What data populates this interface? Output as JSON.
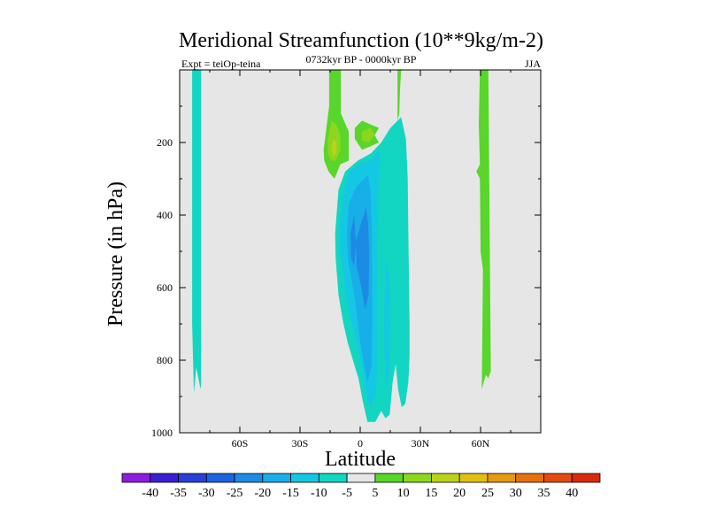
{
  "chart_data": {
    "type": "contour",
    "title": "Meridional Streamfunction (10**9kg/m-2)",
    "subtitle": "0732kyr BP - 0000kyr BP",
    "left_label": "Expt = teiOp-teina",
    "right_label": "JJA",
    "xlabel": "Latitude",
    "ylabel": "Pressure (in hPa)",
    "xlim": [
      -90,
      90
    ],
    "ylim": [
      1000,
      0
    ],
    "x_ticks": [
      {
        "value": -60,
        "label": "60S"
      },
      {
        "value": -30,
        "label": "30S"
      },
      {
        "value": 0,
        "label": "0"
      },
      {
        "value": 30,
        "label": "30N"
      },
      {
        "value": 60,
        "label": "60N"
      }
    ],
    "y_ticks": [
      {
        "value": 200,
        "label": "200"
      },
      {
        "value": 400,
        "label": "400"
      },
      {
        "value": 600,
        "label": "600"
      },
      {
        "value": 800,
        "label": "800"
      },
      {
        "value": 1000,
        "label": "1000"
      }
    ],
    "colorbar": {
      "levels": [
        -40,
        -35,
        -30,
        -25,
        -20,
        -15,
        -10,
        -5,
        5,
        10,
        15,
        20,
        25,
        30,
        35,
        40
      ],
      "colors": [
        "#8a1ee0",
        "#3b1fd4",
        "#2a3fd8",
        "#1f62df",
        "#1d8ae3",
        "#18aee8",
        "#14c8e4",
        "#12d6c2",
        "#e6e6e6",
        "#58d62a",
        "#8ed61e",
        "#bcd21a",
        "#e0c014",
        "#e49a12",
        "#e47212",
        "#e44a10",
        "#d82a0c"
      ]
    },
    "regions": [
      {
        "name": "southern-polar-cell",
        "value_range": [
          -10,
          -5
        ],
        "color": "#12d6c2",
        "polygon": [
          [
            -83.8,
            0
          ],
          [
            -79.3,
            0
          ],
          [
            -79.3,
            860
          ],
          [
            -79.6,
            880
          ],
          [
            -81.7,
            820
          ],
          [
            -82.9,
            890
          ],
          [
            -83.8,
            700
          ]
        ]
      },
      {
        "name": "northern-polar-cell",
        "value_range": [
          5,
          10
        ],
        "color": "#58d62a",
        "polygon": [
          [
            63.9,
            0
          ],
          [
            59.7,
            0
          ],
          [
            59.1,
            150
          ],
          [
            59.7,
            260
          ],
          [
            57.9,
            280
          ],
          [
            59.7,
            300
          ],
          [
            60.0,
            500
          ],
          [
            61.2,
            550
          ],
          [
            60.6,
            880
          ],
          [
            62.7,
            840
          ],
          [
            63.9,
            850
          ],
          [
            65.1,
            830
          ]
        ]
      },
      {
        "name": "upper-left-positive-cell",
        "value_range": [
          5,
          10
        ],
        "color": "#58d62a",
        "polygon": [
          [
            -15.5,
            0
          ],
          [
            -9.6,
            0
          ],
          [
            -9.6,
            120
          ],
          [
            -5.7,
            170
          ],
          [
            -5.7,
            250
          ],
          [
            -9.9,
            260
          ],
          [
            -12.8,
            300
          ],
          [
            -15.8,
            280
          ],
          [
            -17.9,
            250
          ],
          [
            -18.2,
            220
          ],
          [
            -17.3,
            180
          ],
          [
            -15.5,
            100
          ]
        ]
      },
      {
        "name": "upper-left-positive-core",
        "value_range": [
          10,
          15
        ],
        "color": "#8ed61e",
        "polygon": [
          [
            -14.3,
            140
          ],
          [
            -11.9,
            150
          ],
          [
            -9.9,
            180
          ],
          [
            -9.9,
            220
          ],
          [
            -12.2,
            250
          ],
          [
            -14.6,
            250
          ],
          [
            -16.1,
            230
          ],
          [
            -16.1,
            190
          ]
        ]
      },
      {
        "name": "upper-left-positive-peak",
        "value_range": [
          15,
          20
        ],
        "color": "#bcd21a",
        "polygon": [
          [
            -13.4,
            190
          ],
          [
            -11.9,
            200
          ],
          [
            -11.9,
            230
          ],
          [
            -13.4,
            240
          ],
          [
            -14.3,
            215
          ]
        ]
      },
      {
        "name": "upper-center-positive-cell",
        "value_range": [
          5,
          10
        ],
        "color": "#58d62a",
        "polygon": [
          [
            -2.7,
            160
          ],
          [
            0.9,
            140
          ],
          [
            5.1,
            150
          ],
          [
            9.3,
            160
          ],
          [
            7.2,
            180
          ],
          [
            9.3,
            200
          ],
          [
            5.4,
            210
          ],
          [
            0.9,
            220
          ],
          [
            -2.7,
            190
          ]
        ]
      },
      {
        "name": "upper-center-positive-core",
        "value_range": [
          10,
          15
        ],
        "color": "#8ed61e",
        "polygon": [
          [
            0.9,
            170
          ],
          [
            5.1,
            160
          ],
          [
            7.2,
            180
          ],
          [
            4.2,
            200
          ],
          [
            0.9,
            195
          ]
        ]
      },
      {
        "name": "upper-right-positive-strip",
        "value_range": [
          5,
          10
        ],
        "color": "#58d62a",
        "polygon": [
          [
            18.6,
            0
          ],
          [
            20.4,
            0
          ],
          [
            19.8,
            60
          ],
          [
            19.5,
            120
          ],
          [
            18.6,
            140
          ]
        ]
      },
      {
        "name": "tropical-negative-cell",
        "value_range": [
          -10,
          -5
        ],
        "color": "#12d6c2",
        "polygon": [
          [
            18.6,
            140
          ],
          [
            20.4,
            130
          ],
          [
            22.8,
            190
          ],
          [
            23.7,
            300
          ],
          [
            24.0,
            450
          ],
          [
            24.3,
            580
          ],
          [
            24.6,
            700
          ],
          [
            24.6,
            790
          ],
          [
            24.0,
            860
          ],
          [
            22.5,
            920
          ],
          [
            20.7,
            930
          ],
          [
            18.9,
            880
          ],
          [
            17.7,
            810
          ],
          [
            16.2,
            860
          ],
          [
            14.7,
            950
          ],
          [
            12.6,
            960
          ],
          [
            10.5,
            940
          ],
          [
            7.5,
            970
          ],
          [
            3.6,
            970
          ],
          [
            1.2,
            910
          ],
          [
            -0.9,
            850
          ],
          [
            -3.6,
            800
          ],
          [
            -6.3,
            750
          ],
          [
            -8.7,
            690
          ],
          [
            -10.8,
            620
          ],
          [
            -12.2,
            520
          ],
          [
            -12.5,
            450
          ],
          [
            -10.8,
            330
          ],
          [
            -7.5,
            280
          ],
          [
            -1.2,
            250
          ],
          [
            5.4,
            230
          ],
          [
            10.5,
            200
          ],
          [
            15.0,
            160
          ]
        ]
      },
      {
        "name": "tropical-negative-core",
        "value_range": [
          -15,
          -10
        ],
        "color": "#14c8e4",
        "polygon": [
          [
            9.9,
            220
          ],
          [
            5.1,
            250
          ],
          [
            -0.9,
            260
          ],
          [
            -5.7,
            280
          ],
          [
            -8.4,
            340
          ],
          [
            -10.2,
            420
          ],
          [
            -10.2,
            500
          ],
          [
            -8.4,
            560
          ],
          [
            -7.2,
            620
          ],
          [
            -5.1,
            680
          ],
          [
            -2.1,
            740
          ],
          [
            0.3,
            800
          ],
          [
            2.7,
            880
          ],
          [
            4.8,
            930
          ],
          [
            7.8,
            900
          ],
          [
            8.7,
            820
          ],
          [
            8.4,
            700
          ],
          [
            8.4,
            600
          ],
          [
            8.7,
            480
          ],
          [
            9.0,
            350
          ]
        ]
      },
      {
        "name": "tropical-negative-right-lobe",
        "value_range": [
          -15,
          -10
        ],
        "color": "#14c8e4",
        "polygon": [
          [
            12.9,
            520
          ],
          [
            14.7,
            570
          ],
          [
            15.0,
            700
          ],
          [
            14.7,
            820
          ],
          [
            13.2,
            880
          ],
          [
            12.0,
            780
          ],
          [
            12.0,
            640
          ]
        ]
      },
      {
        "name": "tropical-negative-inner",
        "value_range": [
          -20,
          -15
        ],
        "color": "#18aee8",
        "polygon": [
          [
            3.9,
            290
          ],
          [
            -1.8,
            320
          ],
          [
            -5.7,
            370
          ],
          [
            -6.6,
            450
          ],
          [
            -6.0,
            530
          ],
          [
            -4.2,
            580
          ],
          [
            -2.4,
            640
          ],
          [
            -1.2,
            700
          ],
          [
            0.3,
            760
          ],
          [
            2.1,
            820
          ],
          [
            3.6,
            860
          ],
          [
            5.7,
            820
          ],
          [
            6.0,
            700
          ],
          [
            6.0,
            560
          ],
          [
            5.7,
            420
          ],
          [
            5.1,
            330
          ]
        ]
      },
      {
        "name": "tropical-negative-peak",
        "value_range": [
          -25,
          -20
        ],
        "color": "#1d8ae3",
        "polygon": [
          [
            3.0,
            380
          ],
          [
            0.6,
            420
          ],
          [
            -2.1,
            470
          ],
          [
            -1.8,
            540
          ],
          [
            0.6,
            600
          ],
          [
            2.4,
            660
          ],
          [
            4.2,
            620
          ],
          [
            4.5,
            500
          ],
          [
            3.9,
            420
          ]
        ]
      },
      {
        "name": "left-column-negative-patch",
        "value_range": [
          -25,
          -20
        ],
        "color": "#1d8ae3",
        "polygon": [
          [
            -3.0,
            400
          ],
          [
            -4.8,
            450
          ],
          [
            -4.5,
            520
          ],
          [
            -3.0,
            540
          ],
          [
            -2.1,
            480
          ]
        ]
      }
    ]
  }
}
